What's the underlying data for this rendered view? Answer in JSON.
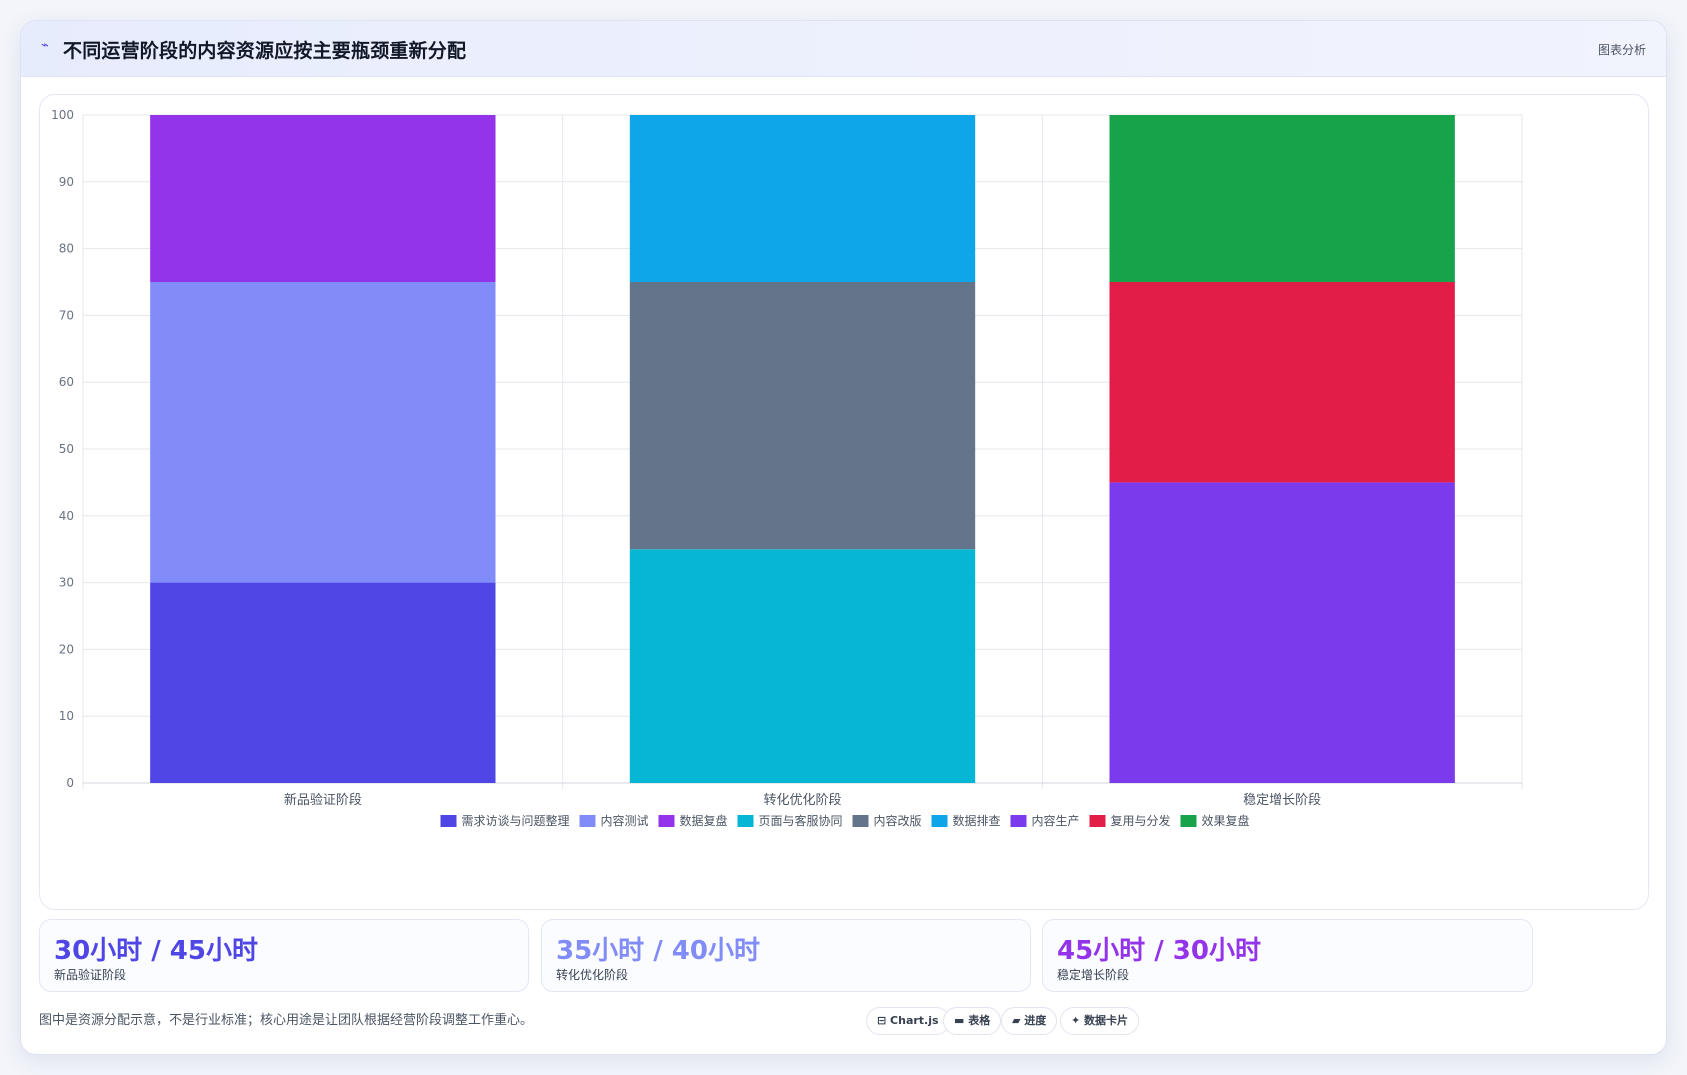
{
  "header": {
    "icon": "⌁",
    "title": "不同运营阶段的内容资源应按主要瓶颈重新分配",
    "tag": "图表分析"
  },
  "chart_data": {
    "type": "bar",
    "stacked": true,
    "categories": [
      "新品验证阶段",
      "转化优化阶段",
      "稳定增长阶段"
    ],
    "ylim": [
      0,
      100
    ],
    "yticks": [
      0,
      10,
      20,
      30,
      40,
      50,
      60,
      70,
      80,
      90,
      100
    ],
    "grid": true,
    "legend_position": "bottom",
    "series": [
      {
        "name": "需求访谈与问题整理",
        "color": "#4f46e5",
        "values": [
          30,
          0,
          0
        ]
      },
      {
        "name": "内容测试",
        "color": "#818cf8",
        "values": [
          45,
          0,
          0
        ]
      },
      {
        "name": "数据复盘",
        "color": "#9333ea",
        "values": [
          25,
          0,
          0
        ]
      },
      {
        "name": "页面与客服协同",
        "color": "#06b6d4",
        "values": [
          0,
          35,
          0
        ]
      },
      {
        "name": "内容改版",
        "color": "#64748b",
        "values": [
          0,
          40,
          0
        ]
      },
      {
        "name": "数据排查",
        "color": "#0ea5e9",
        "values": [
          0,
          25,
          0
        ]
      },
      {
        "name": "内容生产",
        "color": "#7c3aed",
        "values": [
          0,
          0,
          45
        ]
      },
      {
        "name": "复用与分发",
        "color": "#e11d48",
        "values": [
          0,
          0,
          30
        ]
      },
      {
        "name": "效果复盘",
        "color": "#16a34a",
        "values": [
          0,
          0,
          25
        ]
      }
    ]
  },
  "stats": [
    {
      "value": "30小时 / 45小时",
      "label": "新品验证阶段",
      "color": "#4f46e5"
    },
    {
      "value": "35小时 / 40小时",
      "label": "转化优化阶段",
      "color": "#818cf8"
    },
    {
      "value": "45小时 / 30小时",
      "label": "稳定增长阶段",
      "color": "#9333ea"
    }
  ],
  "footnote": "图中是资源分配示意，不是行业标准；核心用途是让团队根据经营阶段调整工作重心。",
  "chips": [
    {
      "label": "⊟ Chart.js",
      "icon": "chart-icon"
    },
    {
      "label": "▬ 表格",
      "icon": "table-icon"
    },
    {
      "label": "▰ 进度",
      "icon": "progress-icon"
    },
    {
      "label": "✦ 数据卡片",
      "icon": "sparkle-icon"
    }
  ]
}
